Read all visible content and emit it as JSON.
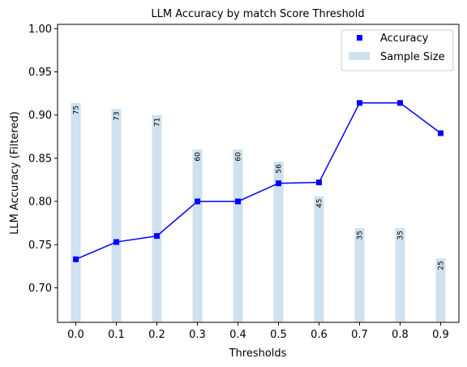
{
  "chart_data": {
    "type": "bar+line",
    "title": "LLM Accuracy by match Score Threshold",
    "xlabel": "Thresholds",
    "ylabel": "LLM Accuracy (Filtered)",
    "x": [
      0.0,
      0.1,
      0.2,
      0.3,
      0.4,
      0.5,
      0.6,
      0.7,
      0.8,
      0.9
    ],
    "x_tick_labels": [
      "0.0",
      "0.1",
      "0.2",
      "0.3",
      "0.4",
      "0.5",
      "0.6",
      "0.7",
      "0.8",
      "0.9"
    ],
    "ylim": [
      0.66,
      1.005
    ],
    "y_ticks": [
      0.7,
      0.75,
      0.8,
      0.85,
      0.9,
      0.95,
      1.0
    ],
    "y_tick_labels": [
      "0.70",
      "0.75",
      "0.80",
      "0.85",
      "0.90",
      "0.95",
      "1.00"
    ],
    "series": [
      {
        "name": "Accuracy",
        "kind": "line",
        "color": "#0000ff",
        "marker": "square",
        "values": [
          0.733,
          0.753,
          0.76,
          0.8,
          0.8,
          0.821,
          0.822,
          0.914,
          0.914,
          0.879
        ]
      },
      {
        "name": "Sample Size",
        "kind": "bar",
        "color": "#cfe1ee",
        "bar_tops": [
          0.914,
          0.907,
          0.9,
          0.86,
          0.86,
          0.846,
          0.806,
          0.769,
          0.769,
          0.734
        ],
        "values": [
          75,
          73,
          71,
          60,
          60,
          56,
          45,
          35,
          35,
          25
        ],
        "value_labels": [
          "75",
          "73",
          "71",
          "60",
          "60",
          "56",
          "45",
          "35",
          "35",
          "25"
        ]
      }
    ],
    "legend": {
      "placement": "upper right",
      "entries": [
        "Accuracy",
        "Sample Size"
      ]
    },
    "grid": false
  }
}
